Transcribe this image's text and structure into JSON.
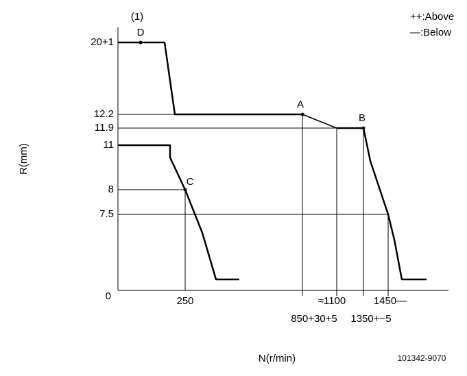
{
  "note": "(1)",
  "legend": [
    "++:Above",
    "—:Below"
  ],
  "y_axis_label": "R(mm)",
  "x_axis_label": "N(r/min)",
  "y_labels": [
    "20+1",
    "12.2",
    "11.9",
    "11",
    "8",
    "7.5",
    "0"
  ],
  "x_labels": [
    "250",
    "≈1100",
    "1450—",
    "850+30+5",
    "1350+−5"
  ],
  "points": [
    "D",
    "A",
    "B",
    "C"
  ],
  "code": "101342-9070"
}
